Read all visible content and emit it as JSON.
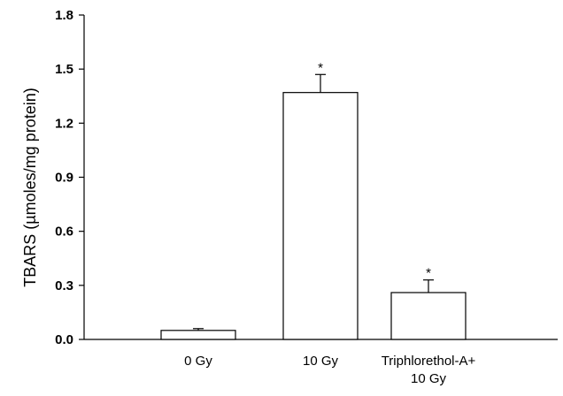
{
  "chart_data": {
    "type": "bar",
    "title": "",
    "xlabel": "",
    "ylabel": "TBARS (µmoles/mg protein)",
    "ylim": [
      0.0,
      1.8
    ],
    "yticks": [
      "0.0",
      "0.3",
      "0.6",
      "0.9",
      "1.2",
      "1.5",
      "1.8"
    ],
    "categories": [
      [
        "0 Gy"
      ],
      [
        "10 Gy"
      ],
      [
        "Triphlorethol-A+",
        "10 Gy"
      ]
    ],
    "values": [
      0.05,
      1.37,
      0.26
    ],
    "errors": [
      0.01,
      0.1,
      0.07
    ],
    "significance": [
      "",
      "*",
      "*"
    ],
    "bar_fill": "#ffffff",
    "bar_stroke": "#000000",
    "grid": false
  }
}
